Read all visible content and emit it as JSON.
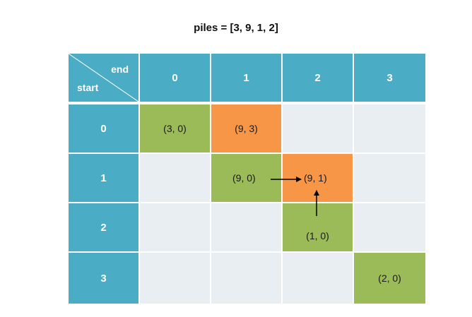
{
  "title": "piles = [3, 9, 1, 2]",
  "corner": {
    "end_label": "end",
    "start_label": "start"
  },
  "column_headers": [
    "0",
    "1",
    "2",
    "3"
  ],
  "row_headers": [
    "0",
    "1",
    "2",
    "3"
  ],
  "cells": [
    {
      "row": 0,
      "col": 0,
      "value": "(3, 0)",
      "color": "#9bbb59"
    },
    {
      "row": 0,
      "col": 1,
      "value": "(9, 3)",
      "color": "#f79646"
    },
    {
      "row": 1,
      "col": 1,
      "value": "(9, 0)",
      "color": "#9bbb59"
    },
    {
      "row": 1,
      "col": 2,
      "value": "(9, 1)",
      "color": "#f79646"
    },
    {
      "row": 2,
      "col": 2,
      "value": "(1, 0)",
      "color": "#9bbb59"
    },
    {
      "row": 3,
      "col": 3,
      "value": "(2, 0)",
      "color": "#9bbb59"
    }
  ],
  "arrows": [
    {
      "from": [
        1,
        1
      ],
      "to": [
        1,
        2
      ]
    },
    {
      "from": [
        2,
        2
      ],
      "to": [
        1,
        2
      ]
    }
  ],
  "colors": {
    "header": "#4bacc6",
    "empty": "#e9eef2",
    "green": "#9bbb59",
    "orange": "#f79646"
  }
}
